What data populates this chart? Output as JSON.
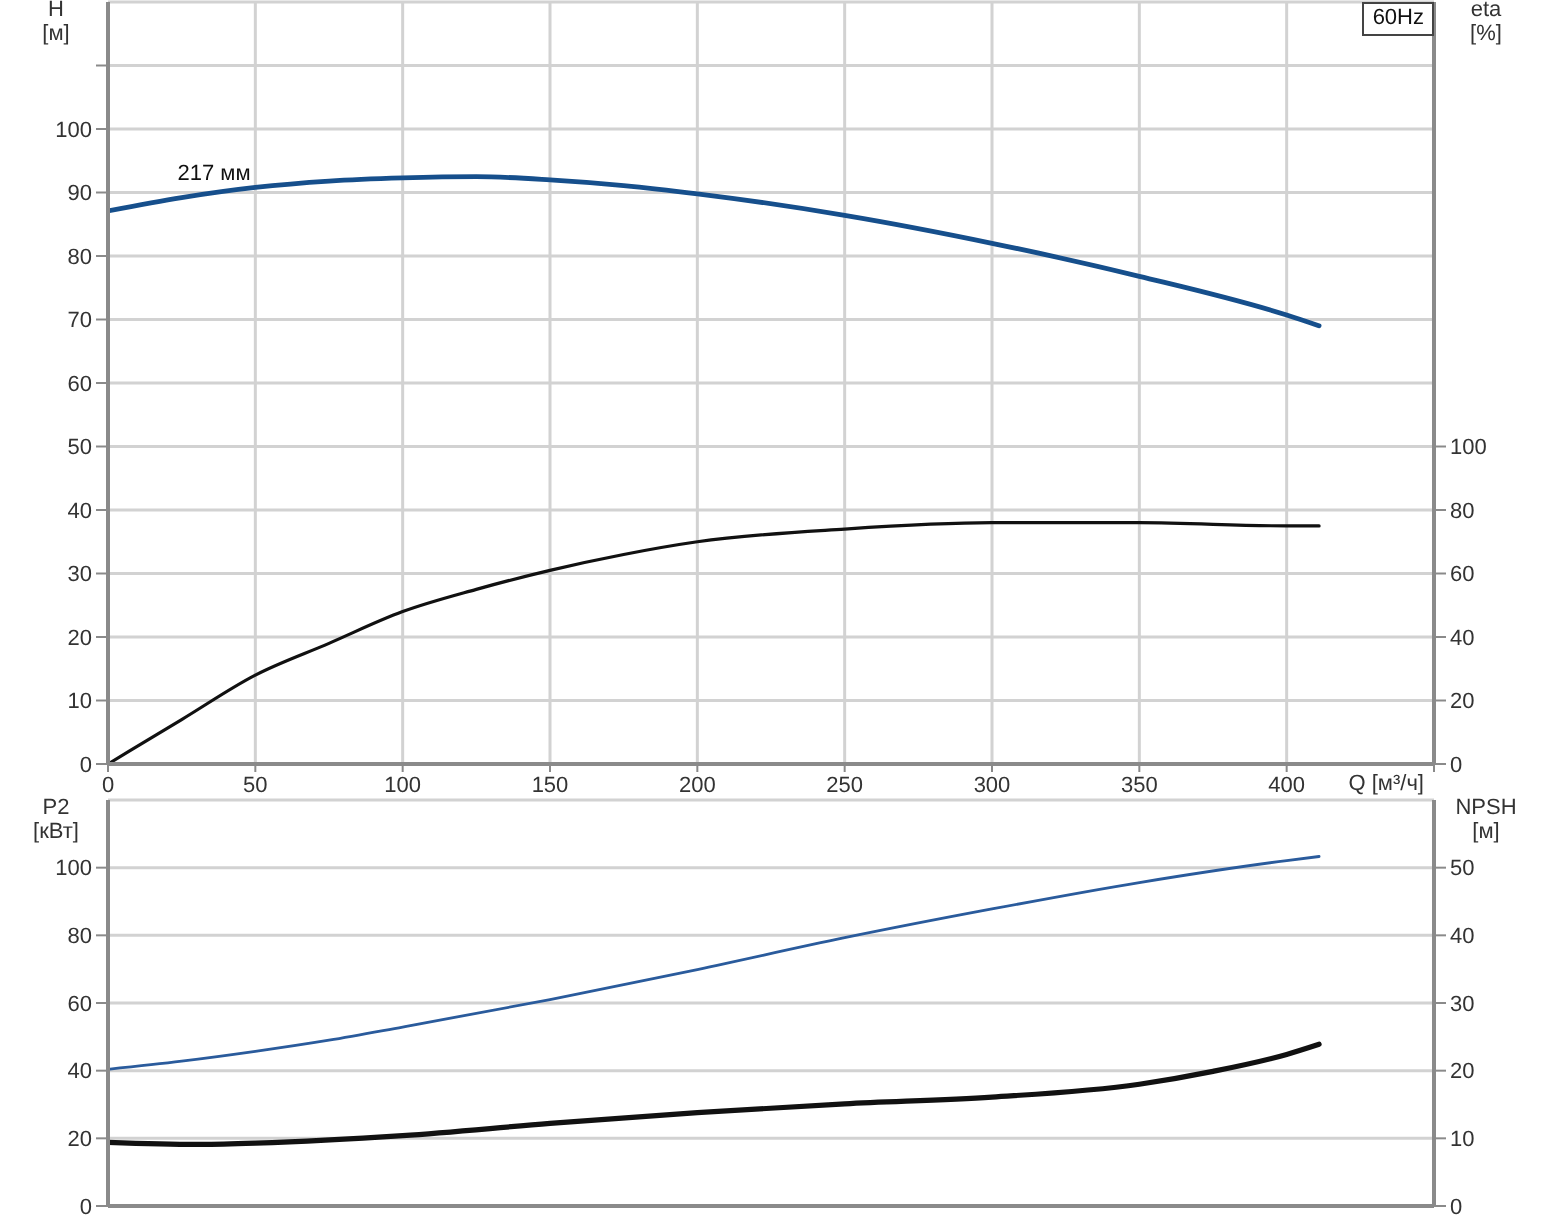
{
  "chart_data": [
    {
      "type": "line",
      "xlabel": "Q [м³/ч]",
      "ylabel": "H [м]",
      "y2label": "eta [%]",
      "xlim": [
        0,
        450
      ],
      "xticks": [
        0,
        50,
        100,
        150,
        200,
        250,
        300,
        350,
        400,
        {
          "value": 450,
          "label": null
        }
      ],
      "ylim": [
        0,
        120
      ],
      "yticks": [
        0,
        10,
        20,
        30,
        40,
        50,
        60,
        70,
        80,
        90,
        100,
        {
          "value": 110,
          "label": null
        }
      ],
      "y2lim": [
        0,
        240
      ],
      "y2ticks": [
        0,
        20,
        40,
        60,
        80,
        100
      ],
      "grid": true,
      "marker": "none",
      "line_style": "solid",
      "annotations": [
        {
          "text": "217 мм",
          "x": 36,
          "y": 90
        },
        "60Hz"
      ],
      "series": [
        {
          "color": "#164f8c",
          "x": [
            0,
            25,
            50,
            75,
            100,
            125,
            150,
            175,
            200,
            250,
            300,
            350,
            400,
            411
          ],
          "values": [
            87.1,
            89.2,
            90.8,
            91.8,
            92.3,
            92.5,
            92.0,
            91.1,
            89.8,
            86.4,
            82.0,
            76.8,
            70.7,
            69.0
          ]
        },
        {
          "color": "#111111",
          "axis": "y2",
          "x": [
            0,
            25,
            50,
            75,
            100,
            125,
            150,
            175,
            200,
            250,
            300,
            350,
            400,
            411
          ],
          "values": [
            0,
            14,
            28,
            38,
            48,
            55,
            61,
            66,
            70,
            74,
            76,
            76,
            75,
            75
          ]
        }
      ]
    },
    {
      "type": "line",
      "ylabel": "P2 [кВт]",
      "y2label": "NPSH [м]",
      "xlim": [
        0,
        450
      ],
      "xticks": [
        0,
        50,
        100,
        150,
        200,
        250,
        300,
        350,
        400,
        450
      ],
      "ylim": [
        0,
        120
      ],
      "yticks": [
        0,
        20,
        40,
        60,
        80,
        100
      ],
      "y2lim": [
        0,
        60
      ],
      "y2ticks": [
        0,
        10,
        20,
        30,
        40,
        50
      ],
      "tick_labels": "y",
      "grid": true,
      "marker": "none",
      "line_style": "solid",
      "series": [
        {
          "color": "#2a5b9c",
          "x": [
            0,
            25,
            50,
            75,
            100,
            150,
            200,
            250,
            300,
            350,
            400,
            411
          ],
          "values": [
            40.4,
            42.8,
            45.7,
            49.0,
            52.9,
            61.0,
            69.9,
            79.3,
            87.8,
            95.6,
            102.1,
            103.3
          ]
        },
        {
          "color": "#111111",
          "axis": "y2",
          "x": [
            0,
            30,
            50,
            100,
            150,
            200,
            250,
            300,
            350,
            375,
            400,
            411
          ],
          "values": [
            9.4,
            9.1,
            9.3,
            10.4,
            12.2,
            13.8,
            15.1,
            16.1,
            18.0,
            19.9,
            22.4,
            23.9
          ]
        }
      ]
    }
  ]
}
